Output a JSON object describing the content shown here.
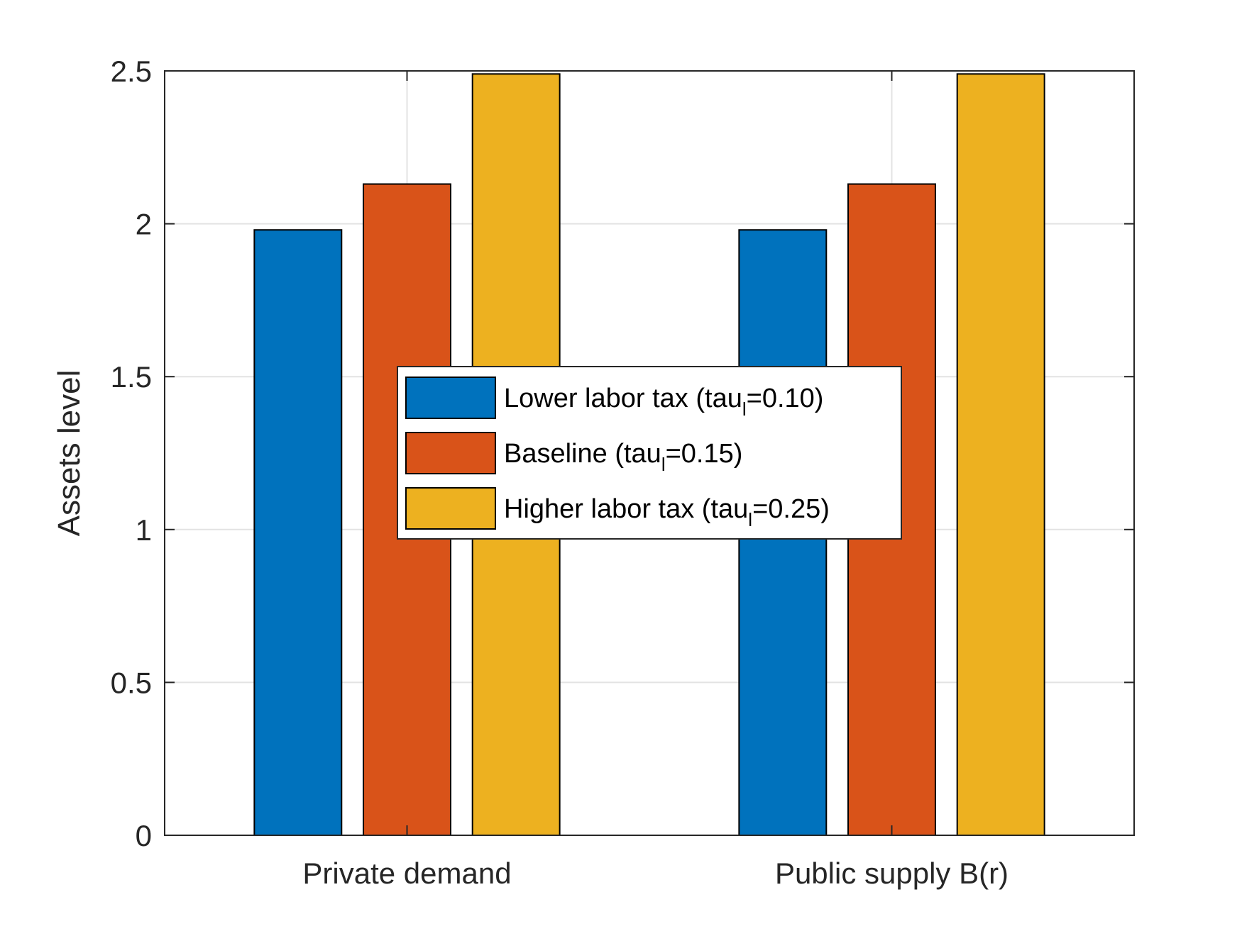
{
  "chart_data": {
    "type": "bar",
    "title": "",
    "xlabel": "",
    "ylabel": "Assets level",
    "categories": [
      "Private demand",
      "Public supply B(r)"
    ],
    "ylim": [
      0,
      2.5
    ],
    "yticks": [
      0,
      0.5,
      1,
      1.5,
      2,
      2.5
    ],
    "ytick_labels": [
      "0",
      "0.5",
      "1",
      "1.5",
      "2",
      "2.5"
    ],
    "grid": true,
    "legend_position": "center",
    "series": [
      {
        "name": "Lower labor tax (tau",
        "name_sub": "l",
        "name_tail": "=0.10)",
        "color": "#0072BD",
        "values": [
          1.98,
          1.98
        ]
      },
      {
        "name": "Baseline (tau",
        "name_sub": "l",
        "name_tail": "=0.15)",
        "color": "#D95319",
        "values": [
          2.13,
          2.13
        ]
      },
      {
        "name": "Higher labor tax (tau",
        "name_sub": "l",
        "name_tail": "=0.25)",
        "color": "#EDB120",
        "values": [
          2.49,
          2.49
        ]
      }
    ]
  }
}
